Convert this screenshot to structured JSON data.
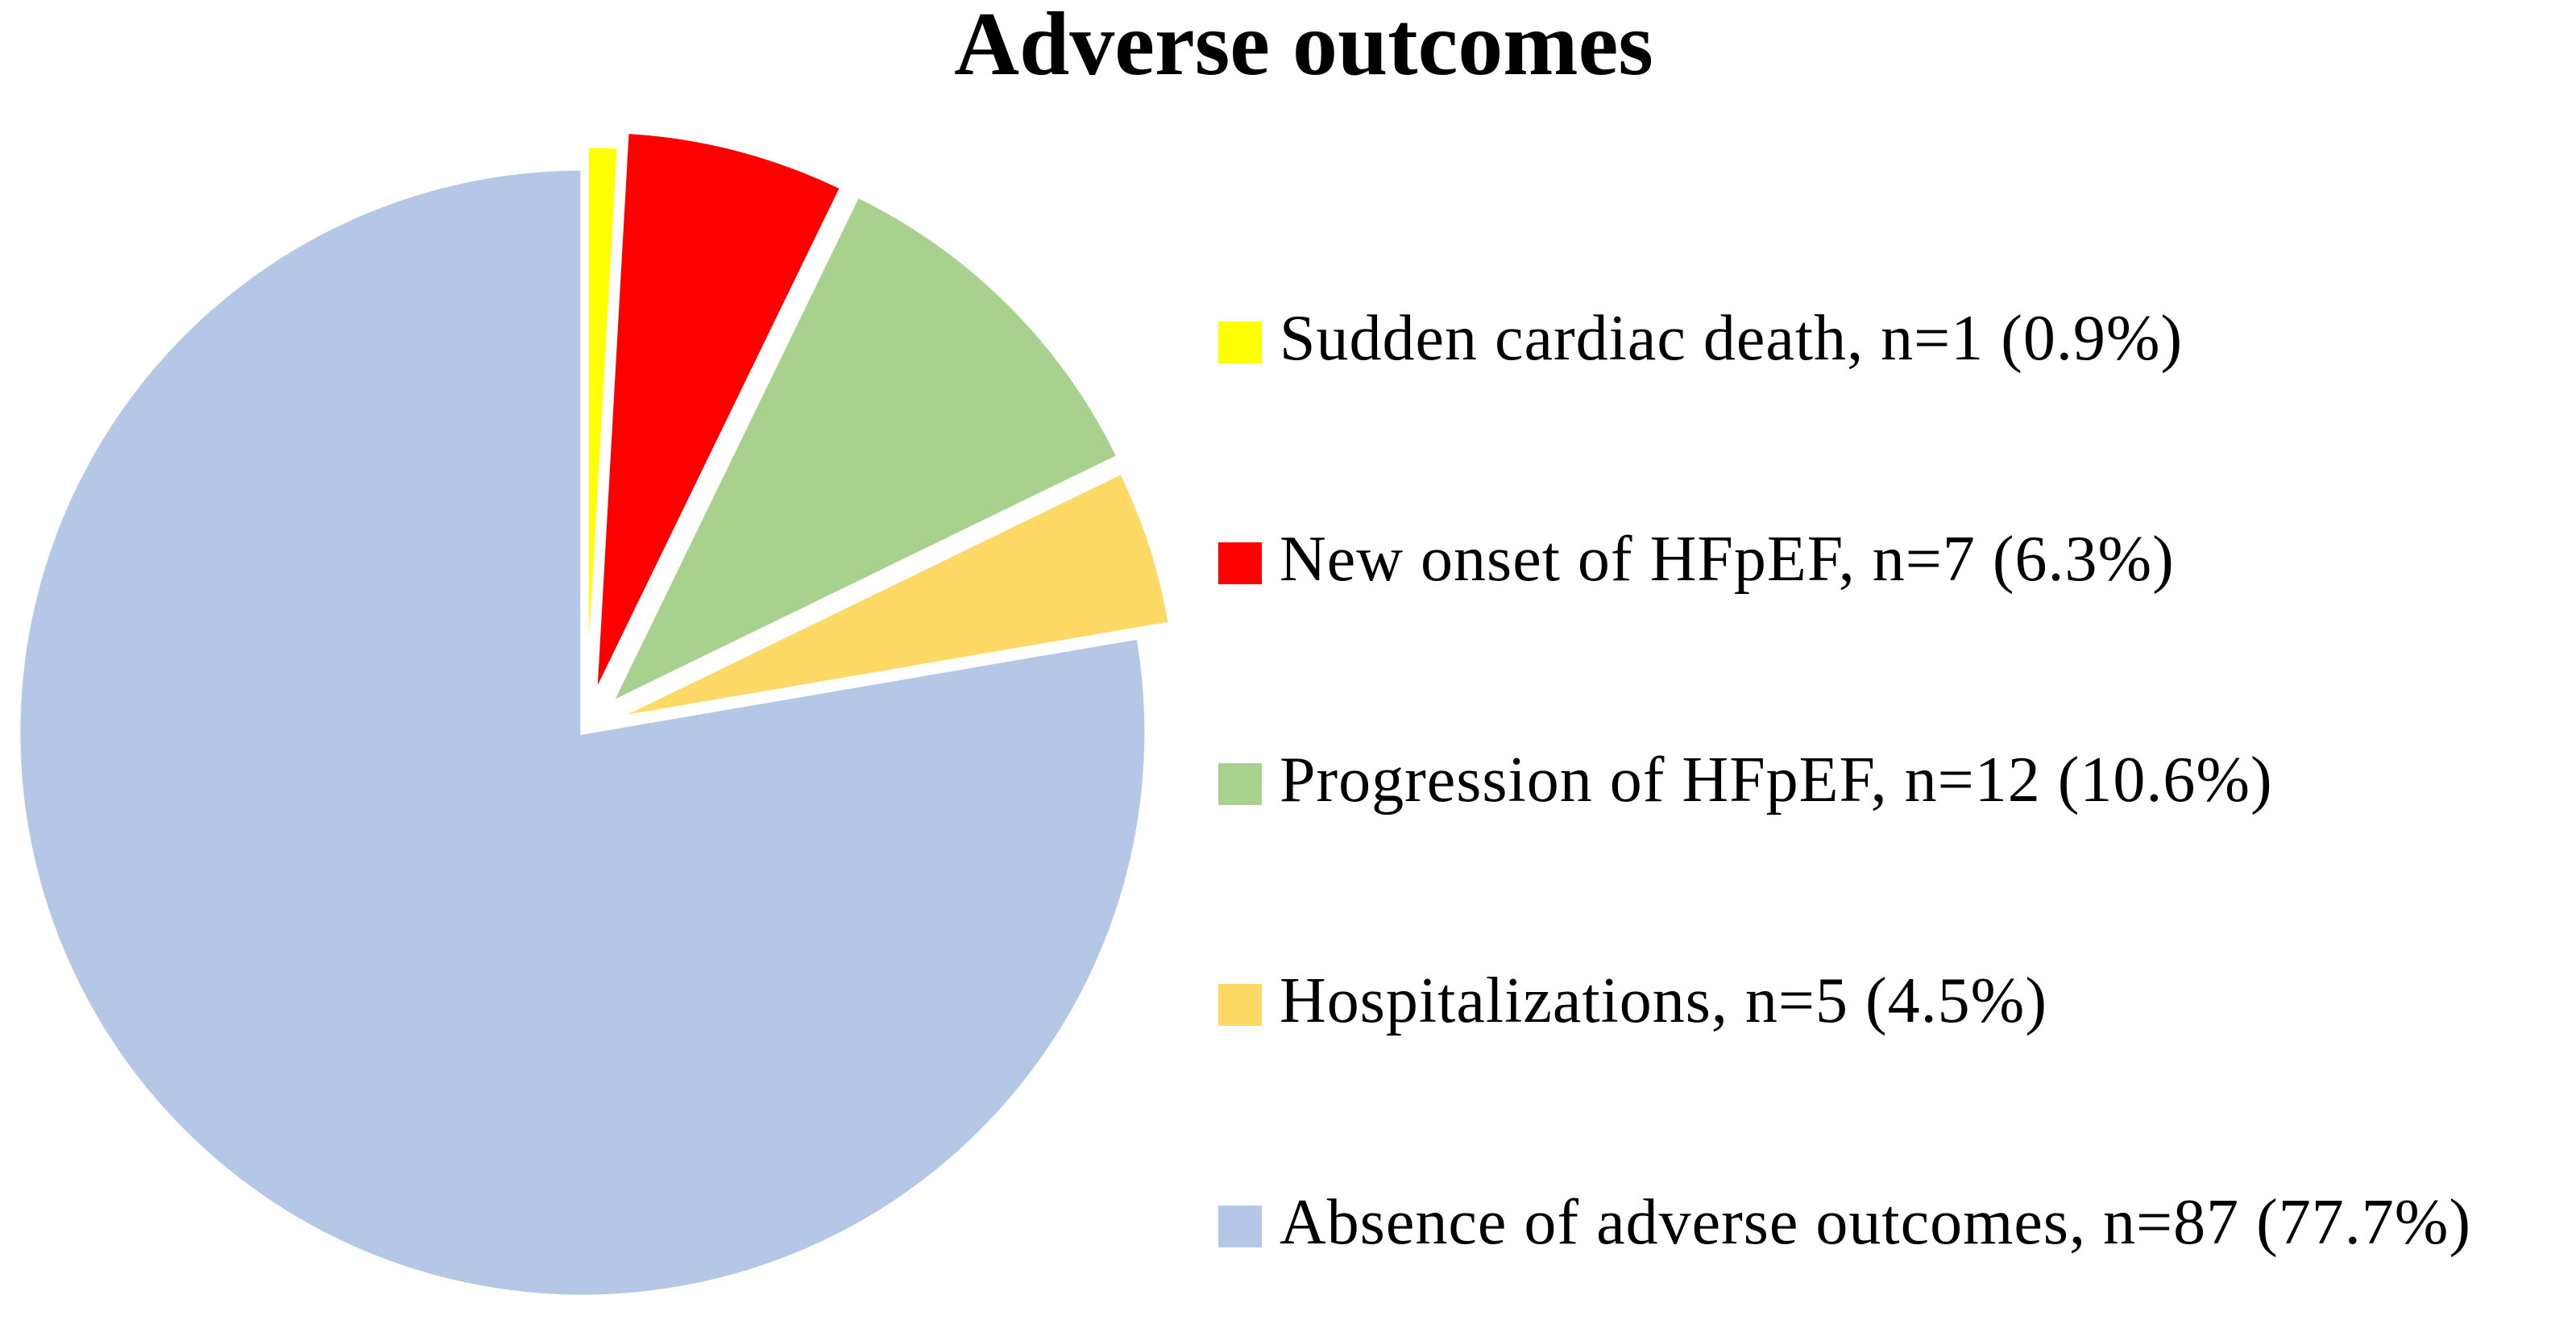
{
  "title": "Adverse outcomes",
  "chart_data": {
    "type": "pie",
    "title": "Adverse outcomes",
    "direction": "clockwise",
    "start_angle_deg": 0,
    "legend_position": "right",
    "background_color": "#FFFFFF",
    "separator_color": "#FFFFFF",
    "title_color": "#000000",
    "text_color": "#000000",
    "total_n": 112,
    "slices": [
      {
        "label": "Sudden cardiac death",
        "n": 1,
        "percent": 0.9,
        "color": "#FFFF00",
        "legend_label": "Sudden cardiac death, n=1 (0.9%)"
      },
      {
        "label": "New onset of HFpEF",
        "n": 7,
        "percent": 6.3,
        "color": "#FF0000",
        "legend_label": "New onset of HFpEF, n=7 (6.3%)"
      },
      {
        "label": "Progression of HFpEF",
        "n": 12,
        "percent": 10.6,
        "color": "#A9D18E",
        "legend_label": "Progression of HFpEF, n=12 (10.6%)"
      },
      {
        "label": "Hospitalizations",
        "n": 5,
        "percent": 4.5,
        "color": "#FFD966",
        "legend_label": "Hospitalizations, n=5 (4.5%)"
      },
      {
        "label": "Absence of adverse outcomes",
        "n": 87,
        "percent": 77.7,
        "color": "#B4C7E7",
        "legend_label": "Absence of adverse outcomes, n=87 (77.7%)"
      }
    ]
  }
}
